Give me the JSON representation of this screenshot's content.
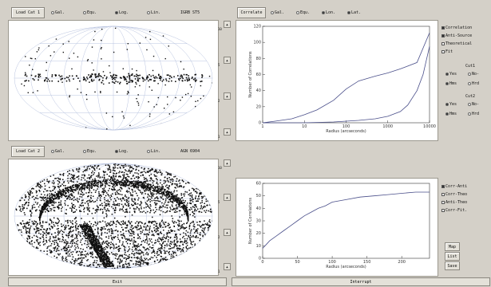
{
  "top": {
    "load_label": "Load Cat 1",
    "projections": [
      {
        "label": "Gal.",
        "on": false
      },
      {
        "label": "Equ.",
        "on": false
      },
      {
        "label": "Log.",
        "on": true
      },
      {
        "label": "Lin.",
        "on": false
      }
    ],
    "catalog_info": "IGRB  ST5",
    "scale": [
      "10",
      "5",
      "2",
      "1"
    ]
  },
  "bottom": {
    "load_label": "Load Cat 2",
    "projections": [
      {
        "label": "Gal.",
        "on": false
      },
      {
        "label": "Equ.",
        "on": false
      },
      {
        "label": "Log.",
        "on": true
      },
      {
        "label": "Lin.",
        "on": false
      }
    ],
    "catalog_info": "AGN   6904",
    "scale": [
      "10",
      "5",
      "2",
      "1"
    ]
  },
  "correlate": {
    "label": "Correlate",
    "options": [
      {
        "label": "Gal.",
        "on": false
      },
      {
        "label": "Equ.",
        "on": false
      },
      {
        "label": "Lon.",
        "on": true
      },
      {
        "label": "Lat.",
        "on": true
      }
    ]
  },
  "side_top": {
    "checks": [
      {
        "label": "Correlation",
        "on": true
      },
      {
        "label": "Anti-Source",
        "on": true
      },
      {
        "label": "Theoretical",
        "on": false
      },
      {
        "label": "Fit",
        "on": false
      }
    ],
    "cut1_label": "Cut1",
    "cut1_opts": [
      {
        "label": "Yes",
        "on": true
      },
      {
        "label": "No-",
        "on": false
      },
      {
        "label": "Hms",
        "on": true
      },
      {
        "label": "Hrd",
        "on": false
      }
    ],
    "cut2_label": "Cut2",
    "cut2_opts": [
      {
        "label": "Yes",
        "on": true
      },
      {
        "label": "No-",
        "on": false
      },
      {
        "label": "Hms",
        "on": true
      },
      {
        "label": "Hrd",
        "on": false
      }
    ]
  },
  "side_bottom": {
    "checks": [
      {
        "label": "Corr-Anti",
        "on": true
      },
      {
        "label": "Corr-Theo",
        "on": false
      },
      {
        "label": "Anti-Theo",
        "on": false
      },
      {
        "label": "Corr-Fit.",
        "on": false
      }
    ],
    "buttons": [
      "Map",
      "List",
      "Save"
    ]
  },
  "footer": {
    "exit_label": "Exit",
    "interrupt_label": "Interrupt"
  },
  "chart_data": [
    {
      "type": "line",
      "xscale": "log",
      "xlim": [
        1,
        10000
      ],
      "ylim": [
        0,
        120
      ],
      "xlabel": "Radius (arcseconds)",
      "ylabel": "Number of Correlations",
      "xticks": [
        "1",
        "10",
        "100",
        "1000",
        "10000"
      ],
      "yticks": [
        "0",
        "20",
        "40",
        "60",
        "80",
        "100",
        "120"
      ],
      "series": [
        {
          "x": [
            1,
            2,
            5,
            10,
            20,
            50,
            100,
            200,
            500,
            1000,
            2000,
            5000,
            10000
          ],
          "y": [
            0,
            2,
            5,
            10,
            16,
            28,
            42,
            52,
            58,
            62,
            67,
            75,
            112
          ]
        },
        {
          "x": [
            1,
            10,
            50,
            100,
            200,
            500,
            1000,
            2000,
            3000,
            5000,
            7000,
            10000
          ],
          "y": [
            0,
            0,
            1,
            2,
            3,
            5,
            8,
            14,
            22,
            40,
            60,
            95
          ]
        }
      ]
    },
    {
      "type": "line",
      "xlim": [
        0,
        240
      ],
      "ylim": [
        0,
        60
      ],
      "xlabel": "Radius (arcseconds)",
      "ylabel": "Number of Correlations",
      "xticks": [
        "0",
        "50",
        "100",
        "150",
        "200"
      ],
      "yticks": [
        "0",
        "10",
        "20",
        "30",
        "40",
        "50",
        "60"
      ],
      "series": [
        {
          "x": [
            0,
            5,
            10,
            20,
            30,
            40,
            50,
            60,
            70,
            80,
            90,
            100,
            120,
            140,
            160,
            180,
            200,
            220,
            240
          ],
          "y": [
            8,
            11,
            14,
            18,
            22,
            26,
            30,
            34,
            37,
            40,
            42,
            45,
            47,
            49,
            50,
            51,
            52,
            53,
            53
          ]
        }
      ]
    }
  ]
}
